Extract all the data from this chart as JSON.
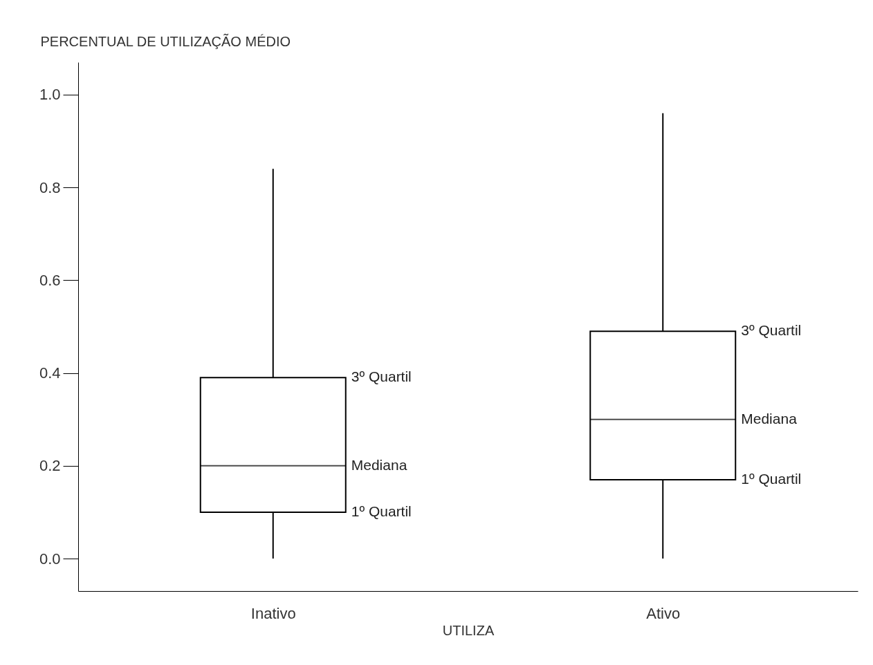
{
  "chart_data": {
    "type": "box",
    "xlabel": "UTILIZA",
    "ylabel": "PERCENTUAL DE UTILIZAÇÃO MÉDIO",
    "categories": [
      "Inativo",
      "Ativo"
    ],
    "boxes": [
      {
        "low": 0.0,
        "q1": 0.1,
        "median": 0.2,
        "q3": 0.39,
        "high": 0.84
      },
      {
        "low": 0.0,
        "q1": 0.17,
        "median": 0.3,
        "q3": 0.49,
        "high": 0.96
      }
    ],
    "ylim": [
      -0.07,
      1.07
    ],
    "yticks": [
      {
        "value": 0,
        "label": "0.0"
      },
      {
        "value": 0.2,
        "label": "0.2"
      },
      {
        "value": 0.4,
        "label": "0.4"
      },
      {
        "value": 0.6,
        "label": "0.6"
      },
      {
        "value": 0.8,
        "label": "0.8"
      },
      {
        "value": 1,
        "label": "1.0"
      }
    ],
    "grid": false,
    "annotations": [
      "3º Quartil",
      "Mediana",
      "1º Quartil",
      "3º Quartil",
      "Mediana",
      "1º Quartil"
    ]
  }
}
